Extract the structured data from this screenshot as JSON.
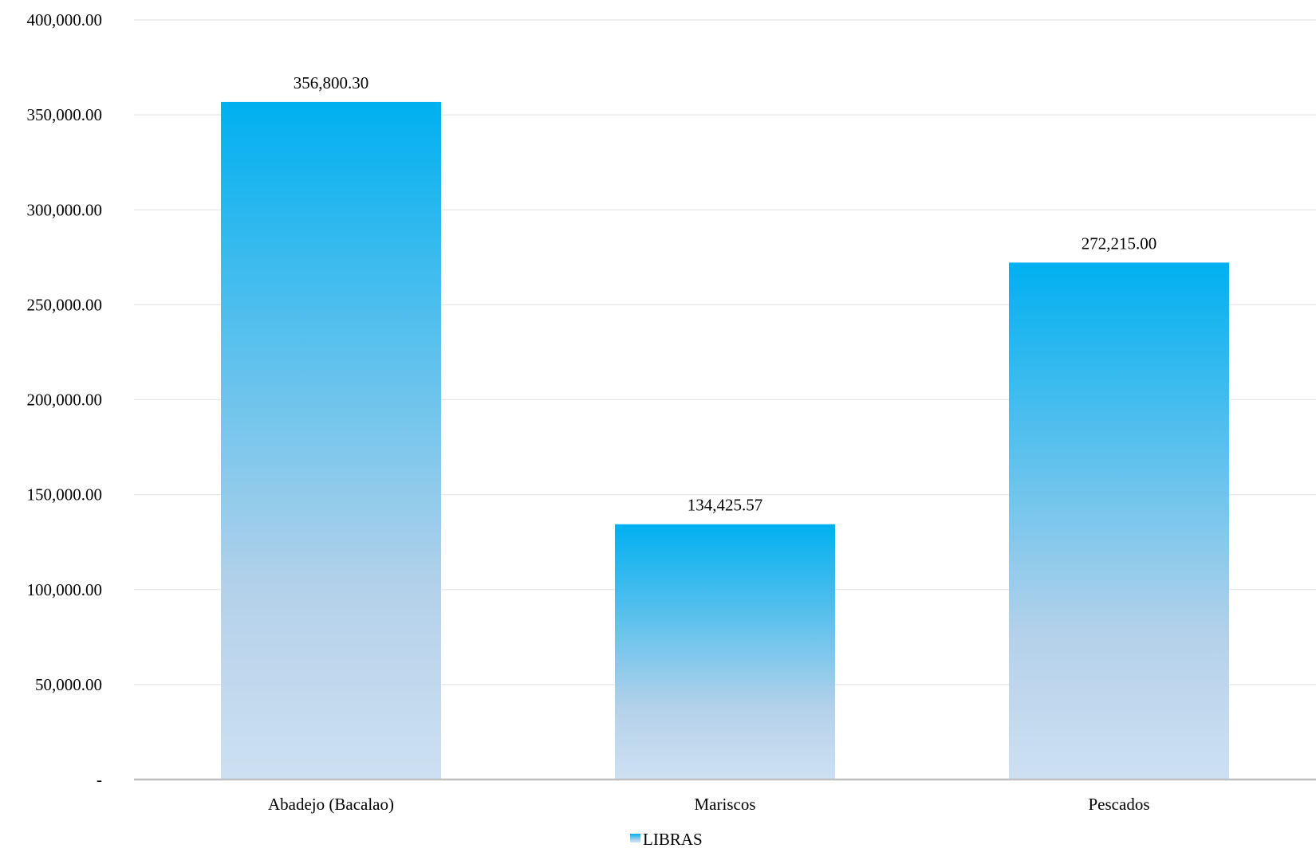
{
  "chart_data": {
    "type": "bar",
    "categories": [
      "Abadejo (Bacalao)",
      "Mariscos",
      "Pescados"
    ],
    "series": [
      {
        "name": "LIBRAS",
        "values": [
          356800.3,
          134425.57,
          272215.0
        ]
      }
    ],
    "data_labels": [
      "356,800.30",
      "134,425.57",
      "272,215.00"
    ],
    "yticks": [
      0,
      50000,
      100000,
      150000,
      200000,
      250000,
      300000,
      350000,
      400000
    ],
    "ytick_labels": [
      "-",
      "50,000.00",
      "100,000.00",
      "150,000.00",
      "200,000.00",
      "250,000.00",
      "300,000.00",
      "350,000.00",
      "400,000.00"
    ],
    "ylim": [
      0,
      400000
    ],
    "grid": true,
    "legend_position": "bottom-center",
    "title": "",
    "xlabel": "",
    "ylabel": "",
    "colors": {
      "bar_top": "#00b0f0",
      "bar_mid": "#b4d1ea",
      "bar_bottom": "#cde0f2",
      "grid": "#e6e6e6",
      "axis": "#bfbfbf"
    }
  }
}
